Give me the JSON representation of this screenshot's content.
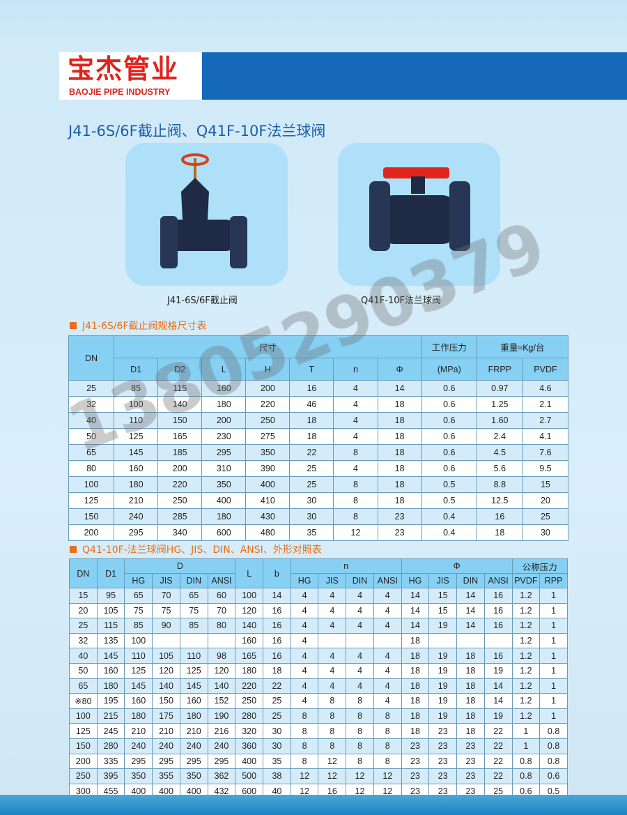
{
  "brand": {
    "name_cn": "宝杰管业",
    "name_en": "BAOJIE PIPE INDUSTRY"
  },
  "title": "J41-6S/6F截止阀、Q41F-10F法兰球阀",
  "products": [
    {
      "caption": "J41-6S/6F截止阀"
    },
    {
      "caption": "Q41F-10F法兰球阀"
    }
  ],
  "watermark": "13805290379",
  "table1": {
    "heading": "J41-6S/6F截止阀规格尺寸表",
    "headers": {
      "dn": "DN",
      "size": "尺寸",
      "pressure": "工作压力",
      "pressure_unit": "(MPa)",
      "weight": "重量≈Kg/台",
      "sub": [
        "D1",
        "D2",
        "L",
        "H",
        "T",
        "n",
        "Φ"
      ],
      "weight_sub": [
        "FRPP",
        "PVDF"
      ]
    },
    "rows": [
      [
        "25",
        "85",
        "115",
        "160",
        "200",
        "16",
        "4",
        "14",
        "0.6",
        "0.97",
        "4.6"
      ],
      [
        "32",
        "100",
        "140",
        "180",
        "220",
        "46",
        "4",
        "18",
        "0.6",
        "1.25",
        "2.1"
      ],
      [
        "40",
        "110",
        "150",
        "200",
        "250",
        "18",
        "4",
        "18",
        "0.6",
        "1.60",
        "2.7"
      ],
      [
        "50",
        "125",
        "165",
        "230",
        "275",
        "18",
        "4",
        "18",
        "0.6",
        "2.4",
        "4.1"
      ],
      [
        "65",
        "145",
        "185",
        "295",
        "350",
        "22",
        "8",
        "18",
        "0.6",
        "4.5",
        "7.6"
      ],
      [
        "80",
        "160",
        "200",
        "310",
        "390",
        "25",
        "4",
        "18",
        "0.6",
        "5.6",
        "9.5"
      ],
      [
        "100",
        "180",
        "220",
        "350",
        "400",
        "25",
        "8",
        "18",
        "0.5",
        "8.8",
        "15"
      ],
      [
        "125",
        "210",
        "250",
        "400",
        "410",
        "30",
        "8",
        "18",
        "0.5",
        "12.5",
        "20"
      ],
      [
        "150",
        "240",
        "285",
        "180",
        "430",
        "30",
        "8",
        "23",
        "0.4",
        "16",
        "25"
      ],
      [
        "200",
        "295",
        "340",
        "600",
        "480",
        "35",
        "12",
        "23",
        "0.4",
        "18",
        "30"
      ]
    ]
  },
  "table2": {
    "heading": "Q41-10F-法兰球阀HG、JIS、DIN、ANSI、外形对照表",
    "headers": {
      "dn": "DN",
      "d1": "D1",
      "d": "D",
      "l": "L",
      "b": "b",
      "n": "n",
      "phi": "Φ",
      "pressure": "公称压力",
      "std": [
        "HG",
        "JIS",
        "DIN",
        "ANSI"
      ],
      "pressure_sub": [
        "PVDF",
        "RPP"
      ]
    },
    "rows": [
      [
        "15",
        "95",
        "65",
        "70",
        "65",
        "60",
        "100",
        "14",
        "4",
        "4",
        "4",
        "4",
        "14",
        "15",
        "14",
        "16",
        "1.2",
        "1"
      ],
      [
        "20",
        "105",
        "75",
        "75",
        "75",
        "70",
        "120",
        "16",
        "4",
        "4",
        "4",
        "4",
        "14",
        "15",
        "14",
        "16",
        "1.2",
        "1"
      ],
      [
        "25",
        "115",
        "85",
        "90",
        "85",
        "80",
        "140",
        "16",
        "4",
        "4",
        "4",
        "4",
        "14",
        "19",
        "14",
        "16",
        "1.2",
        "1"
      ],
      [
        "32",
        "135",
        "100",
        "",
        "",
        "",
        "160",
        "16",
        "4",
        "",
        "",
        "",
        "18",
        "",
        "",
        "",
        "1.2",
        "1"
      ],
      [
        "40",
        "145",
        "110",
        "105",
        "110",
        "98",
        "165",
        "16",
        "4",
        "4",
        "4",
        "4",
        "18",
        "19",
        "18",
        "16",
        "1.2",
        "1"
      ],
      [
        "50",
        "160",
        "125",
        "120",
        "125",
        "120",
        "180",
        "18",
        "4",
        "4",
        "4",
        "4",
        "18",
        "19",
        "18",
        "19",
        "1.2",
        "1"
      ],
      [
        "65",
        "180",
        "145",
        "140",
        "145",
        "140",
        "220",
        "22",
        "4",
        "4",
        "4",
        "4",
        "18",
        "19",
        "18",
        "14",
        "1.2",
        "1"
      ],
      [
        "※80",
        "195",
        "160",
        "150",
        "160",
        "152",
        "250",
        "25",
        "4",
        "8",
        "8",
        "4",
        "18",
        "19",
        "18",
        "14",
        "1.2",
        "1"
      ],
      [
        "100",
        "215",
        "180",
        "175",
        "180",
        "190",
        "280",
        "25",
        "8",
        "8",
        "8",
        "8",
        "18",
        "19",
        "18",
        "19",
        "1.2",
        "1"
      ],
      [
        "125",
        "245",
        "210",
        "210",
        "210",
        "216",
        "320",
        "30",
        "8",
        "8",
        "8",
        "8",
        "18",
        "23",
        "18",
        "22",
        "1",
        "0.8"
      ],
      [
        "150",
        "280",
        "240",
        "240",
        "240",
        "240",
        "360",
        "30",
        "8",
        "8",
        "8",
        "8",
        "23",
        "23",
        "23",
        "22",
        "1",
        "0.8"
      ],
      [
        "200",
        "335",
        "295",
        "295",
        "295",
        "295",
        "400",
        "35",
        "8",
        "12",
        "8",
        "8",
        "23",
        "23",
        "23",
        "22",
        "0.8",
        "0.8"
      ],
      [
        "250",
        "395",
        "350",
        "355",
        "350",
        "362",
        "500",
        "38",
        "12",
        "12",
        "12",
        "12",
        "23",
        "23",
        "23",
        "22",
        "0.8",
        "0.6"
      ],
      [
        "300",
        "455",
        "400",
        "400",
        "400",
        "432",
        "600",
        "40",
        "12",
        "16",
        "12",
        "12",
        "23",
        "23",
        "23",
        "25",
        "0.6",
        "0.5"
      ]
    ]
  },
  "colors": {
    "brand_red": "#e0231c",
    "brand_blue": "#1669b8",
    "header_blue": "#86d0f4",
    "accent_orange": "#e8701a"
  }
}
